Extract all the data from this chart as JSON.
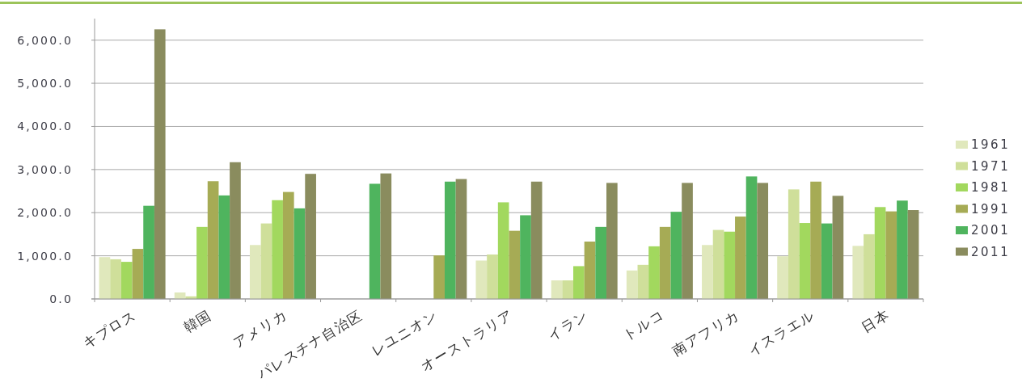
{
  "chart_data": {
    "type": "bar",
    "categories": [
      "キプロス",
      "韓国",
      "アメリカ",
      "パレスチナ自治区",
      "レユニオン",
      "オーストラリア",
      "イラン",
      "トルコ",
      "南アフリカ",
      "イスラエル",
      "日本"
    ],
    "series": [
      {
        "name": "1961",
        "color": "#e0e8bc",
        "values": [
          970,
          150,
          1250,
          null,
          null,
          890,
          430,
          660,
          1250,
          990,
          1230
        ]
      },
      {
        "name": "1971",
        "color": "#cfdf9a",
        "values": [
          920,
          60,
          1750,
          null,
          null,
          1030,
          430,
          790,
          1600,
          2540,
          1500
        ]
      },
      {
        "name": "1981",
        "color": "#a2d85e",
        "values": [
          860,
          1670,
          2290,
          null,
          null,
          2240,
          760,
          1220,
          1560,
          1760,
          2130
        ]
      },
      {
        "name": "1991",
        "color": "#a6ab55",
        "values": [
          1160,
          2730,
          2480,
          null,
          1010,
          1580,
          1330,
          1670,
          1910,
          2720,
          2030
        ]
      },
      {
        "name": "2001",
        "color": "#4fb45e",
        "values": [
          2160,
          2400,
          2100,
          2670,
          2720,
          1940,
          1670,
          2020,
          2840,
          1750,
          2280
        ]
      },
      {
        "name": "2011",
        "color": "#8a8c5e",
        "values": [
          6250,
          3170,
          2900,
          2910,
          2780,
          2720,
          2690,
          2690,
          2690,
          2390,
          2060
        ]
      }
    ],
    "ylim": [
      0,
      6500
    ],
    "yticks": [
      {
        "value": 0,
        "label": "0.0"
      },
      {
        "value": 1000,
        "label": "1,000.0"
      },
      {
        "value": 2000,
        "label": "2,000.0"
      },
      {
        "value": 3000,
        "label": "3,000.0"
      },
      {
        "value": 4000,
        "label": "4,000.0"
      },
      {
        "value": 5000,
        "label": "5,000.0"
      },
      {
        "value": 6000,
        "label": "6,000.0"
      }
    ],
    "grid": "y",
    "legend": "right"
  }
}
